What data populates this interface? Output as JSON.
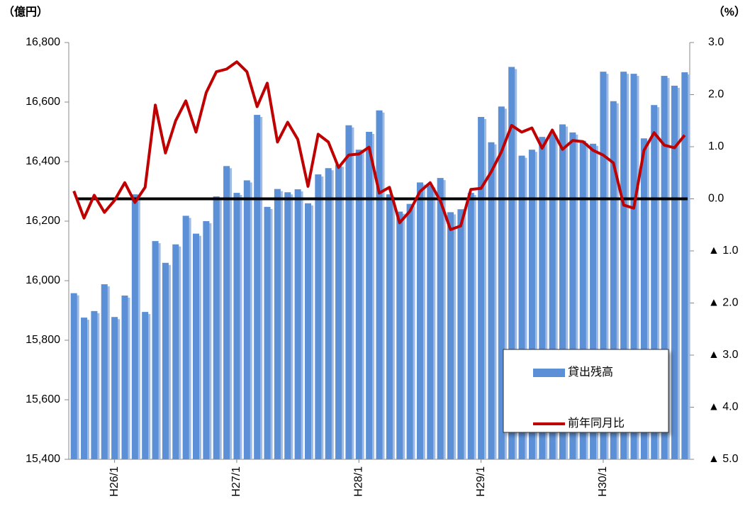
{
  "chart_data": {
    "type": "bar-line",
    "y_label": "（億円）",
    "y2_label": "（%）",
    "categories": [
      null,
      null,
      null,
      null,
      "H26/1",
      null,
      null,
      null,
      null,
      null,
      null,
      null,
      null,
      null,
      null,
      null,
      "H27/1",
      null,
      null,
      null,
      null,
      null,
      null,
      null,
      null,
      null,
      null,
      null,
      "H28/1",
      null,
      null,
      null,
      null,
      null,
      null,
      null,
      null,
      null,
      null,
      null,
      "H29/1",
      null,
      null,
      null,
      null,
      null,
      null,
      null,
      null,
      null,
      null,
      null,
      "H30/1",
      null,
      null,
      null,
      null,
      null,
      null,
      null,
      null
    ],
    "series": [
      {
        "name": "貸出残高",
        "color": "#5b8fd6",
        "kind": "bar",
        "values": [
          15958,
          15876,
          15898,
          15988,
          15878,
          15950,
          16290,
          15895,
          16133,
          16060,
          16122,
          16218,
          16158,
          16200,
          16283,
          16385,
          16295,
          16337,
          16557,
          16248,
          16308,
          16297,
          16307,
          16260,
          16357,
          16378,
          16390,
          16522,
          16440,
          16500,
          16572,
          16290,
          16232,
          16258,
          16330,
          16320,
          16345,
          16230,
          16240,
          16295,
          16550,
          16465,
          16585,
          16718,
          16420,
          16440,
          16483,
          16495,
          16525,
          16498,
          16470,
          16460,
          16702,
          16603,
          16702,
          16695,
          16478,
          16590,
          16688,
          16655,
          16700
        ]
      },
      {
        "name": "前年同月比",
        "color": "#c00000",
        "kind": "line",
        "axis": "y2",
        "values": [
          0.15,
          -0.37,
          0.07,
          -0.26,
          -0.03,
          0.31,
          -0.07,
          0.22,
          1.8,
          0.88,
          1.5,
          1.88,
          1.28,
          2.04,
          2.44,
          2.49,
          2.63,
          2.44,
          1.77,
          2.22,
          1.09,
          1.47,
          1.14,
          0.24,
          1.24,
          1.09,
          0.6,
          0.84,
          0.86,
          0.99,
          0.11,
          0.22,
          -0.46,
          -0.24,
          0.14,
          0.31,
          -0.04,
          -0.59,
          -0.52,
          0.18,
          0.2,
          0.52,
          0.9,
          1.41,
          1.28,
          1.36,
          0.97,
          1.32,
          0.95,
          1.12,
          1.1,
          0.93,
          0.84,
          0.69,
          -0.12,
          -0.18,
          0.93,
          1.27,
          1.03,
          0.98,
          1.22
        ]
      }
    ],
    "ylim": [
      15400,
      16800
    ],
    "yticks": [
      {
        "value": 15400,
        "label": "15,400"
      },
      {
        "value": 15600,
        "label": "15,600"
      },
      {
        "value": 15800,
        "label": "15,800"
      },
      {
        "value": 16000,
        "label": "16,000"
      },
      {
        "value": 16200,
        "label": "16,200"
      },
      {
        "value": 16400,
        "label": "16,400"
      },
      {
        "value": 16600,
        "label": "16,600"
      },
      {
        "value": 16800,
        "label": "16,800"
      }
    ],
    "y2lim": [
      -5,
      3
    ],
    "y2ticks": [
      {
        "value": -5,
        "label": "▲ 5.0"
      },
      {
        "value": -4,
        "label": "▲ 4.0"
      },
      {
        "value": -3,
        "label": "▲ 3.0"
      },
      {
        "value": -2,
        "label": "▲ 2.0"
      },
      {
        "value": -1,
        "label": "▲ 1.0"
      },
      {
        "value": 0,
        "label": "0.0"
      },
      {
        "value": 1,
        "label": "1.0"
      },
      {
        "value": 2,
        "label": "2.0"
      },
      {
        "value": 3,
        "label": "3.0"
      }
    ],
    "zero_line": true,
    "legend": "bottom-right"
  }
}
